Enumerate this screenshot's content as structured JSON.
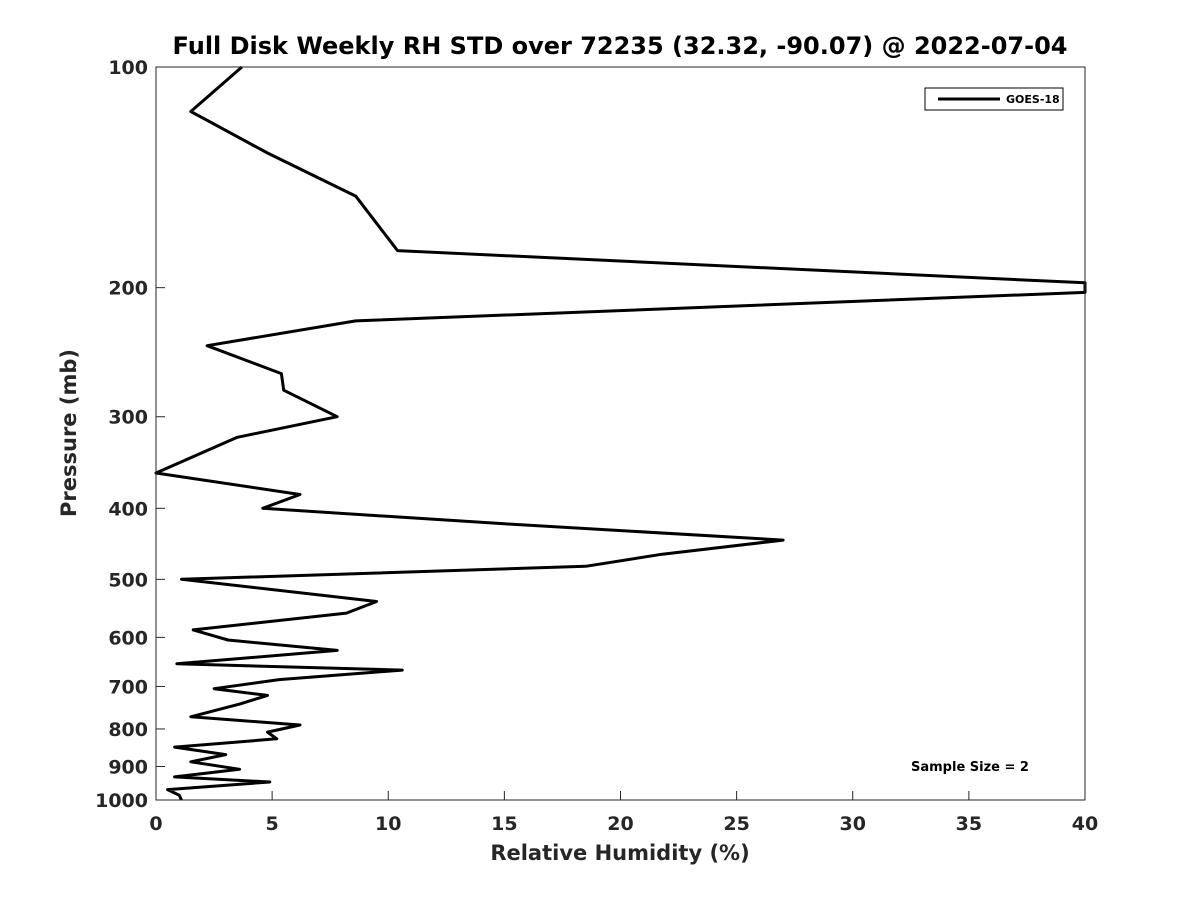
{
  "chart_data": {
    "type": "line",
    "title": "Full Disk Weekly RH STD over 72235 (32.32, -90.07) @ 2022-07-04",
    "xlabel": "Relative Humidity (%)",
    "ylabel": "Pressure (mb)",
    "xlim": [
      0,
      40
    ],
    "ylim": [
      1000,
      100
    ],
    "yscale": "log",
    "xticks": [
      0,
      5,
      10,
      15,
      20,
      25,
      30,
      35,
      40
    ],
    "xtick_labels": [
      "0",
      "5",
      "10",
      "15",
      "20",
      "25",
      "30",
      "35",
      "40"
    ],
    "yticks": [
      100,
      200,
      300,
      400,
      500,
      600,
      700,
      800,
      900,
      1000
    ],
    "ytick_labels": [
      "100",
      "200",
      "300",
      "400",
      "500",
      "600",
      "700",
      "800",
      "900",
      "1000"
    ],
    "grid": false,
    "legend": {
      "placement": "top-right",
      "entries": [
        "GOES-18"
      ]
    },
    "annotation": "Sample Size = 2",
    "series": [
      {
        "name": "GOES-18",
        "color": "#000000",
        "points": [
          [
            3.7,
            100
          ],
          [
            1.5,
            115
          ],
          [
            4.8,
            131
          ],
          [
            8.6,
            150
          ],
          [
            10.4,
            178
          ],
          [
            40.0,
            197
          ],
          [
            40.0,
            203
          ],
          [
            8.6,
            222
          ],
          [
            2.2,
            240
          ],
          [
            5.4,
            262
          ],
          [
            5.5,
            276
          ],
          [
            7.8,
            300
          ],
          [
            3.5,
            320
          ],
          [
            0.0,
            358
          ],
          [
            6.2,
            383
          ],
          [
            4.6,
            400
          ],
          [
            15.0,
            420
          ],
          [
            27.0,
            442
          ],
          [
            21.8,
            462
          ],
          [
            18.5,
            480
          ],
          [
            1.1,
            500
          ],
          [
            9.5,
            536
          ],
          [
            8.2,
            556
          ],
          [
            1.6,
            586
          ],
          [
            3.1,
            605
          ],
          [
            7.8,
            625
          ],
          [
            0.9,
            652
          ],
          [
            10.6,
            665
          ],
          [
            5.3,
            685
          ],
          [
            2.5,
            705
          ],
          [
            4.8,
            720
          ],
          [
            3.6,
            740
          ],
          [
            1.5,
            770
          ],
          [
            6.2,
            790
          ],
          [
            4.8,
            808
          ],
          [
            5.2,
            825
          ],
          [
            0.8,
            847
          ],
          [
            3.0,
            867
          ],
          [
            1.5,
            887
          ],
          [
            3.6,
            908
          ],
          [
            0.8,
            930
          ],
          [
            4.9,
            945
          ],
          [
            0.5,
            968
          ],
          [
            1.0,
            985
          ],
          [
            1.1,
            1000
          ]
        ]
      }
    ]
  }
}
